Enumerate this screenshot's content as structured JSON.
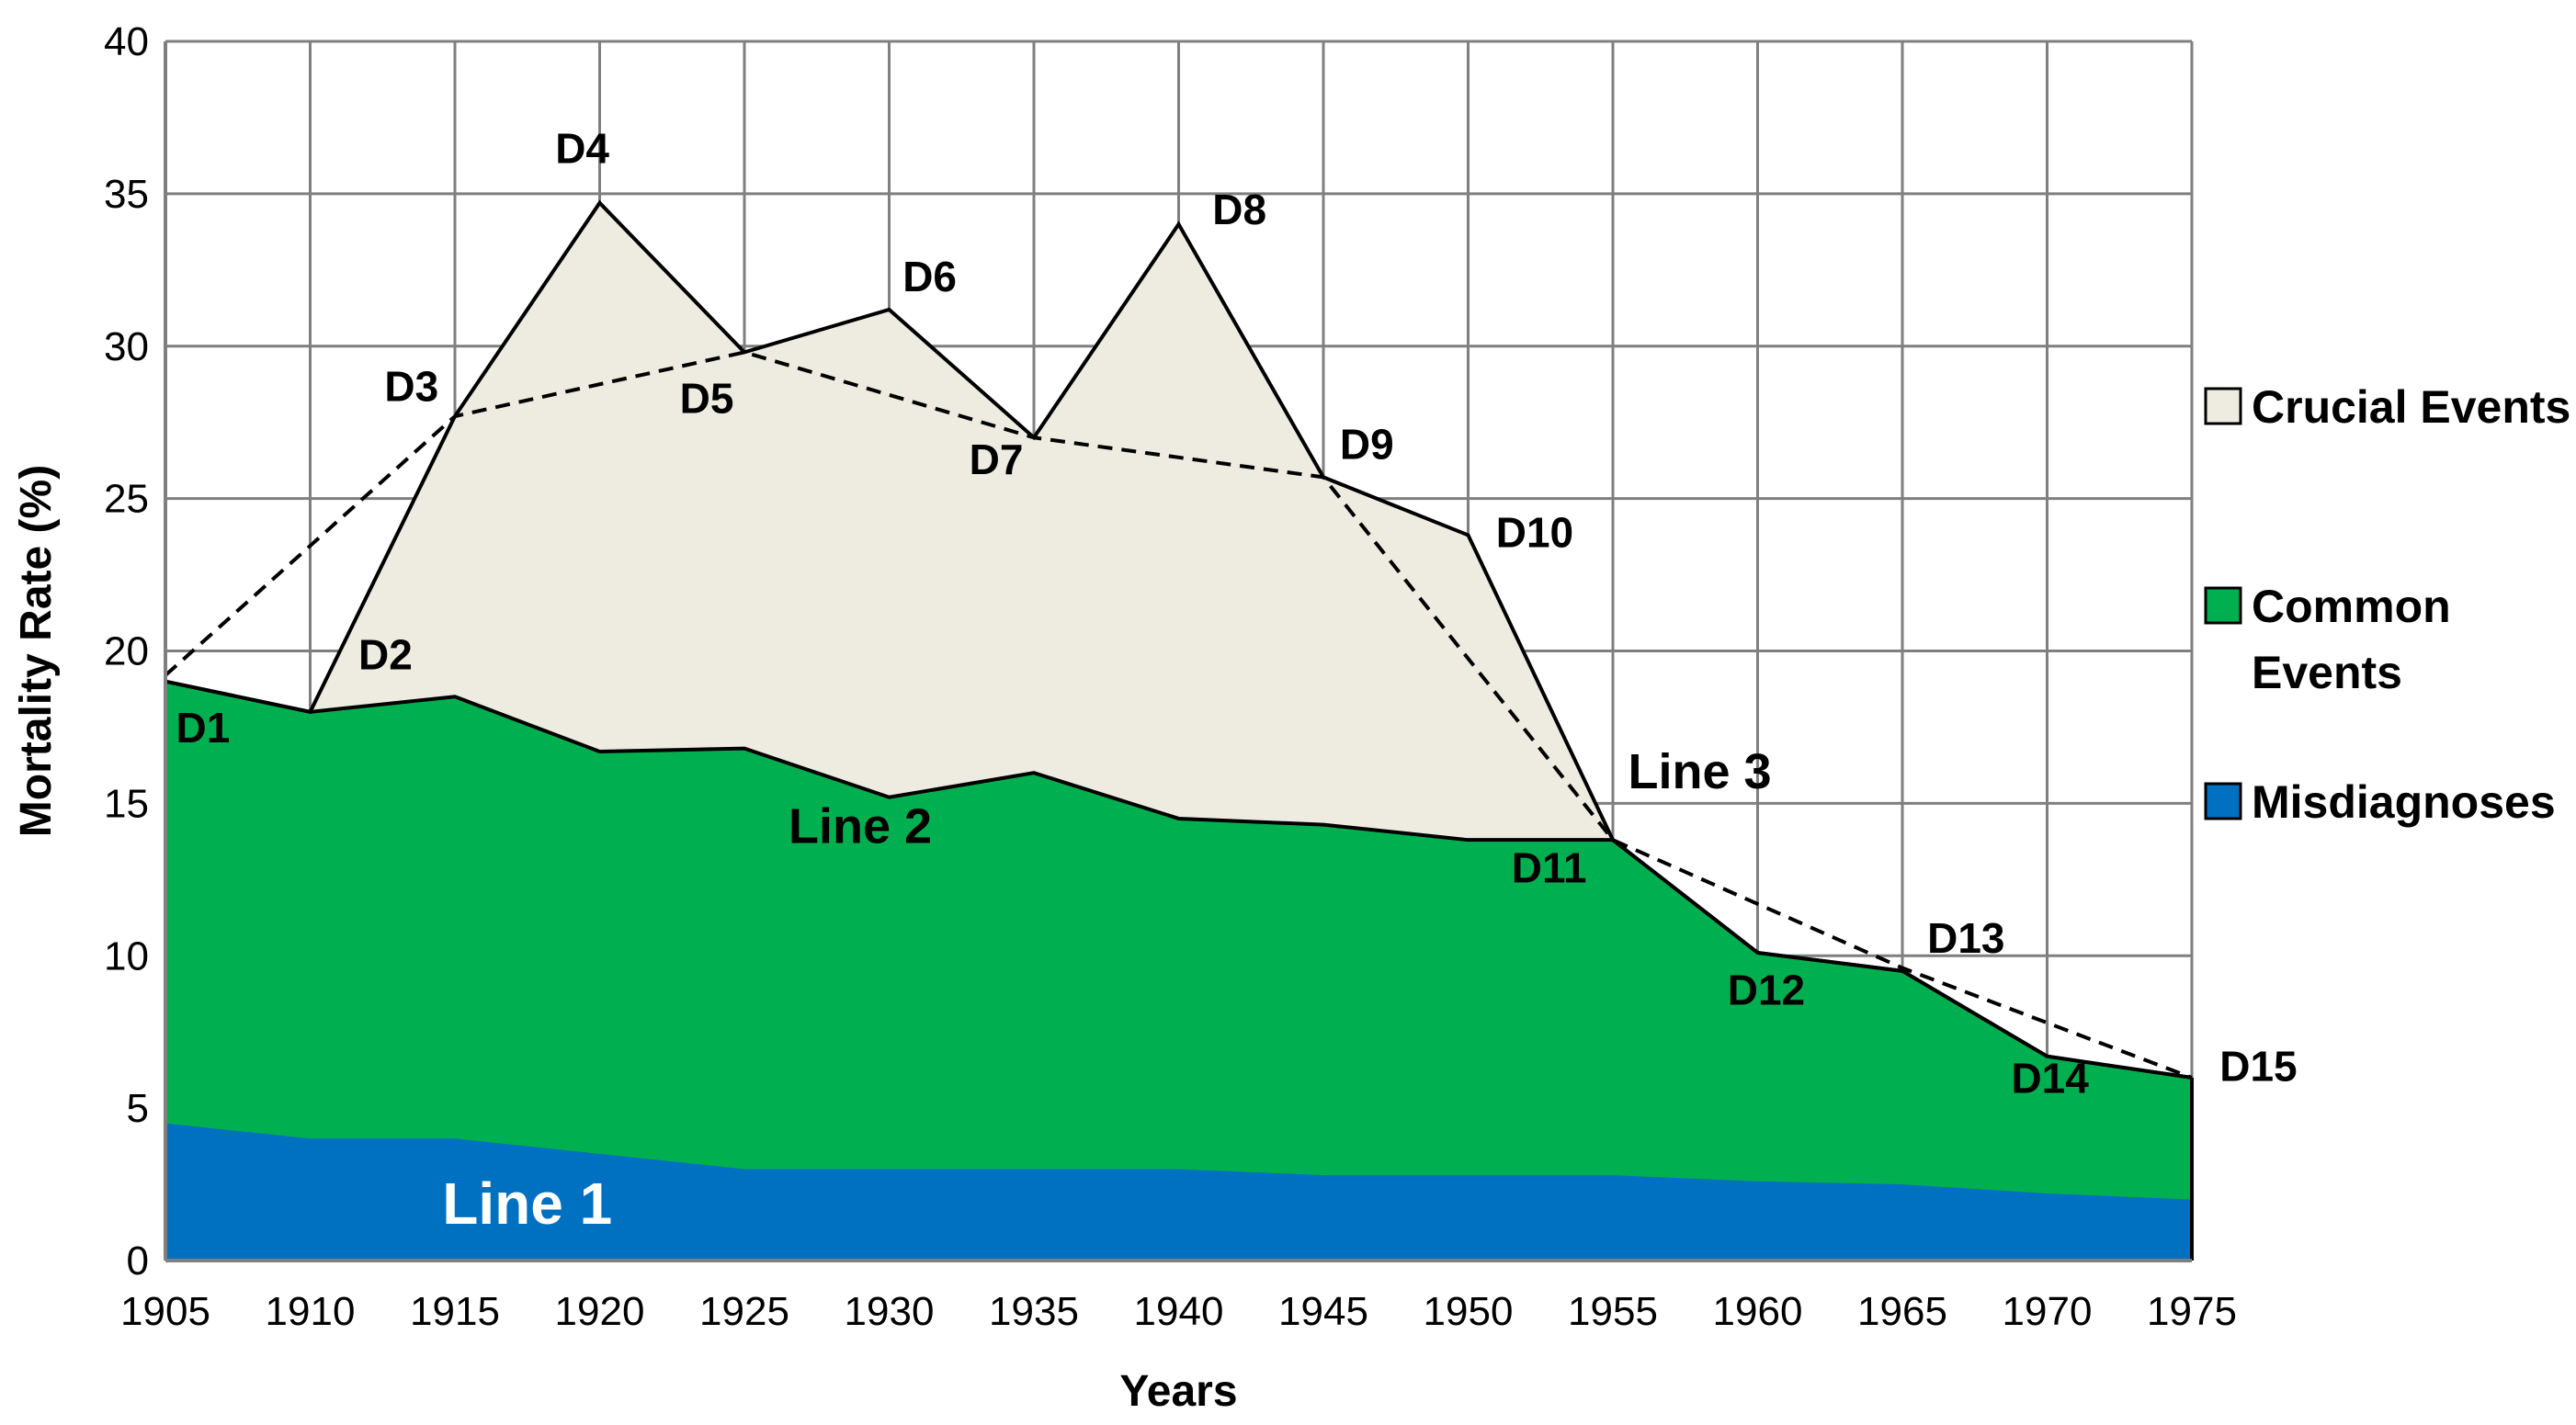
{
  "chart_data": {
    "type": "area",
    "stacked": true,
    "title": "",
    "xlabel": "Years",
    "ylabel": "Mortality Rate (%)",
    "x": [
      1905,
      1910,
      1915,
      1920,
      1925,
      1930,
      1935,
      1940,
      1945,
      1950,
      1955,
      1960,
      1965,
      1970,
      1975
    ],
    "xticks": [
      "1905",
      "1910",
      "1915",
      "1920",
      "1925",
      "1930",
      "1935",
      "1940",
      "1945",
      "1950",
      "1955",
      "1960",
      "1965",
      "1970",
      "1975"
    ],
    "ylim": [
      0,
      40
    ],
    "yticks": [
      "0",
      "5",
      "10",
      "15",
      "20",
      "25",
      "30",
      "35",
      "40"
    ],
    "grid": true,
    "legend_position": "right",
    "series": [
      {
        "name": "Misdiagnoses",
        "color": "#0070C0",
        "top_values": [
          4.5,
          4.0,
          4.0,
          3.5,
          3.0,
          3.0,
          3.0,
          3.0,
          2.8,
          2.8,
          2.8,
          2.6,
          2.5,
          2.2,
          2.0
        ]
      },
      {
        "name": "Common Events",
        "label": "Common\nEvents",
        "color": "#00B050",
        "top_values": [
          19.0,
          18.0,
          18.5,
          16.7,
          16.8,
          15.2,
          16.0,
          14.5,
          14.3,
          13.8,
          13.8,
          10.1,
          9.5,
          6.7,
          6.0
        ]
      },
      {
        "name": "Crucial Events",
        "color": "#EEECE1",
        "top_values": [
          19.0,
          18.0,
          27.7,
          34.7,
          29.8,
          31.2,
          27.0,
          34.0,
          25.7,
          23.8,
          13.8,
          10.1,
          9.5,
          6.7,
          6.0
        ]
      }
    ],
    "dashed_line": {
      "x": [
        1905,
        1915,
        1925,
        1935,
        1945,
        1955,
        1965,
        1975
      ],
      "y": [
        19.2,
        27.7,
        29.8,
        27.0,
        25.7,
        13.8,
        9.6,
        6.0
      ]
    },
    "point_labels": [
      {
        "text": "D1",
        "x": 1906.3,
        "y": 17.0
      },
      {
        "text": "D2",
        "x": 1912.6,
        "y": 19.4
      },
      {
        "text": "D3",
        "x": 1913.5,
        "y": 28.2
      },
      {
        "text": "D4",
        "x": 1919.4,
        "y": 36.0
      },
      {
        "text": "D5",
        "x": 1923.7,
        "y": 27.8
      },
      {
        "text": "D6",
        "x": 1931.4,
        "y": 31.8
      },
      {
        "text": "D7",
        "x": 1933.7,
        "y": 25.8
      },
      {
        "text": "D8",
        "x": 1942.1,
        "y": 34.0
      },
      {
        "text": "D9",
        "x": 1946.5,
        "y": 26.3
      },
      {
        "text": "D10",
        "x": 1952.3,
        "y": 23.4
      },
      {
        "text": "D11",
        "x": 1952.8,
        "y": 12.4
      },
      {
        "text": "D12",
        "x": 1960.3,
        "y": 8.4
      },
      {
        "text": "D13",
        "x": 1967.2,
        "y": 10.1
      },
      {
        "text": "D14",
        "x": 1970.1,
        "y": 5.5
      },
      {
        "text": "D15",
        "x": 1977.3,
        "y": 5.9
      }
    ],
    "line_labels": [
      {
        "text": "Line 1",
        "x": 1917.5,
        "y": 1.2,
        "color": "#ffffff"
      },
      {
        "text": "Line 2",
        "x": 1929.0,
        "y": 13.7,
        "color": "#000000"
      },
      {
        "text": "Line 3",
        "x": 1958.0,
        "y": 15.5,
        "color": "#000000"
      }
    ]
  }
}
